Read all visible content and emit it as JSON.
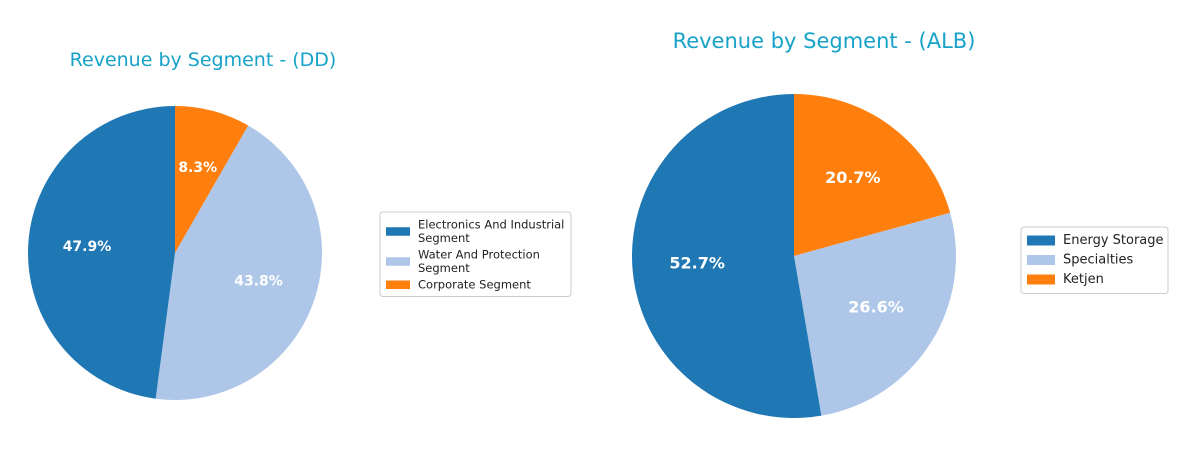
{
  "chart_data": [
    {
      "type": "pie",
      "title": "Revenue by Segment - (DD)",
      "slices": [
        {
          "label": "Corporate Segment",
          "legend_lines": [
            "Corporate Segment"
          ],
          "value": 8.3,
          "pct_label": "8.3%",
          "color": "#ff7f0e"
        },
        {
          "label": "Water And Protection Segment",
          "legend_lines": [
            "Water And Protection",
            "Segment"
          ],
          "value": 43.8,
          "pct_label": "43.8%",
          "color": "#aec7e8"
        },
        {
          "label": "Electronics And Industrial Segment",
          "legend_lines": [
            "Electronics And Industrial",
            "Segment"
          ],
          "value": 47.9,
          "pct_label": "47.9%",
          "color": "#1f77b4"
        }
      ],
      "legend_order": [
        2,
        1,
        0
      ],
      "legend_placement": "right"
    },
    {
      "type": "pie",
      "title": "Revenue by Segment - (ALB)",
      "slices": [
        {
          "label": "Ketjen",
          "legend_lines": [
            "Ketjen"
          ],
          "value": 20.7,
          "pct_label": "20.7%",
          "color": "#ff7f0e"
        },
        {
          "label": "Specialties",
          "legend_lines": [
            "Specialties"
          ],
          "value": 26.6,
          "pct_label": "26.6%",
          "color": "#aec7e8"
        },
        {
          "label": "Energy Storage",
          "legend_lines": [
            "Energy Storage"
          ],
          "value": 52.7,
          "pct_label": "52.7%",
          "color": "#1f77b4"
        }
      ],
      "legend_order": [
        2,
        1,
        0
      ],
      "legend_placement": "right"
    }
  ]
}
